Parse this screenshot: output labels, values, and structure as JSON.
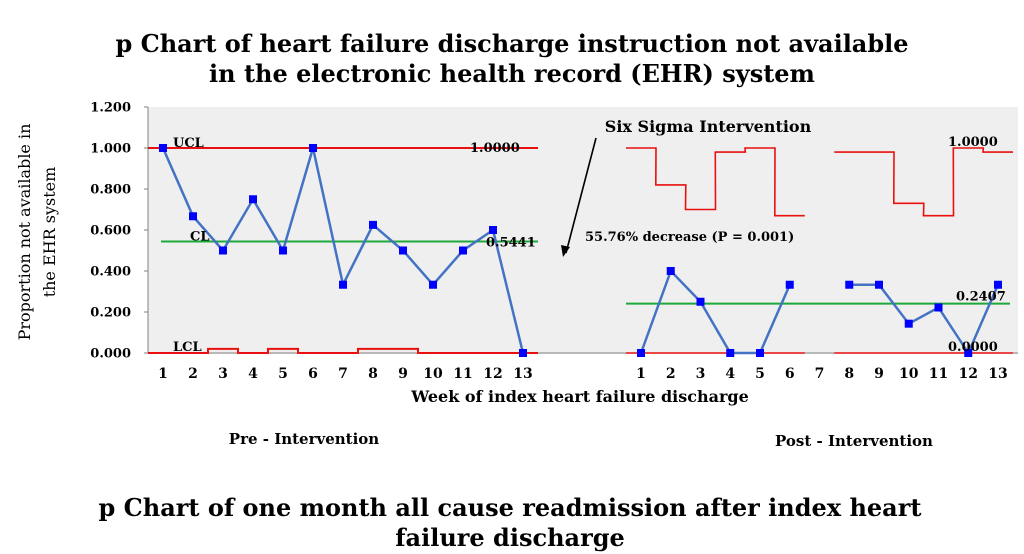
{
  "chart_data": {
    "type": "line",
    "title_line1": "p Chart of heart failure discharge instruction not available",
    "title_line2": "in the electronic health record (EHR) system",
    "ylabel_line1": "Proportion not available in",
    "ylabel_line2": "the EHR system",
    "xlabel": "Week of index heart failure discharge",
    "ylim": [
      0,
      1.2
    ],
    "yticks": [
      "0.000",
      "0.200",
      "0.400",
      "0.600",
      "0.800",
      "1.000",
      "1.200"
    ],
    "grid": false,
    "pre": {
      "label": "Pre - Intervention",
      "weeks": [
        "1",
        "2",
        "3",
        "4",
        "5",
        "6",
        "7",
        "8",
        "9",
        "10",
        "11",
        "12",
        "13"
      ],
      "values": [
        1.0,
        0.667,
        0.5,
        0.75,
        0.5,
        1.0,
        0.333,
        0.625,
        0.5,
        0.333,
        0.5,
        0.6,
        0.0
      ],
      "cl": 0.5441,
      "cl_label": "0.5441",
      "cl_tag": "CL",
      "ucl": [
        1,
        1,
        1,
        1,
        1,
        1,
        1,
        1,
        1,
        1,
        1,
        1,
        1
      ],
      "ucl_label": "1.0000",
      "ucl_tag": "UCL",
      "lcl": [
        0,
        0,
        0.02,
        0,
        0.02,
        0,
        0,
        0.02,
        0.02,
        0,
        0,
        0,
        0
      ],
      "lcl_tag": "LCL"
    },
    "post": {
      "label": "Post - Intervention",
      "weeks": [
        "1",
        "2",
        "3",
        "4",
        "5",
        "6",
        "7",
        "8",
        "9",
        "10",
        "11",
        "12",
        "13"
      ],
      "values": [
        0.0,
        0.4,
        0.25,
        0.0,
        0.0,
        0.333,
        null,
        0.333,
        0.333,
        0.143,
        0.222,
        0.0,
        0.333
      ],
      "cl": 0.2407,
      "cl_label": "0.2407",
      "ucl": [
        1.0,
        0.82,
        0.7,
        0.98,
        1.0,
        0.67,
        null,
        0.98,
        0.98,
        0.73,
        0.67,
        1.0,
        0.98
      ],
      "ucl_label": "1.0000",
      "lcl": [
        0,
        0,
        0,
        0,
        0,
        0,
        null,
        0,
        0,
        0,
        0,
        0,
        0
      ],
      "lcl_label": "0.0000"
    },
    "annotations": {
      "intervention": "Six Sigma Intervention",
      "decrease": "55.76% decrease (P = 0.001)"
    },
    "colors": {
      "data": "#4472C4",
      "marker": "#0000FF",
      "limits": "#E8110F",
      "center": "#1DAA3A",
      "plot_bg": "#EFEFEF"
    }
  },
  "second_title_line1": "p Chart of one month all cause readmission after index heart",
  "second_title_line2": "failure discharge"
}
